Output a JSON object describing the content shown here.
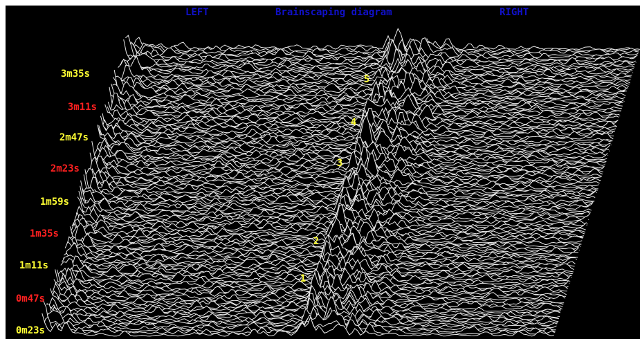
{
  "header": {
    "left": "LEFT",
    "title": "Brainscaping diagram",
    "right": "RIGHT"
  },
  "time_labels": [
    {
      "text": "3m35s",
      "color": "#ffff33"
    },
    {
      "text": "3m11s",
      "color": "#ff2020"
    },
    {
      "text": "2m47s",
      "color": "#ffff33"
    },
    {
      "text": "2m23s",
      "color": "#ff2020"
    },
    {
      "text": "1m59s",
      "color": "#ffff33"
    },
    {
      "text": "1m35s",
      "color": "#ff2020"
    },
    {
      "text": "1m11s",
      "color": "#ffff33"
    },
    {
      "text": "0m47s",
      "color": "#ff2020"
    },
    {
      "text": "0m23s",
      "color": "#ffff33"
    }
  ],
  "markers": [
    "5",
    "4",
    "3",
    "2",
    "1"
  ]
}
